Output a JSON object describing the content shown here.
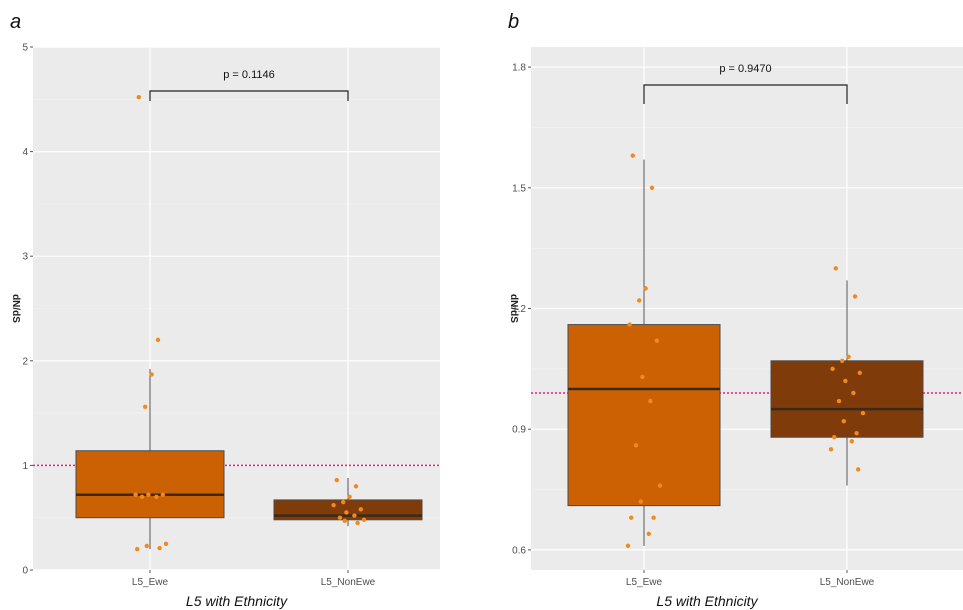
{
  "chart_data": [
    {
      "panel": "a",
      "type": "box",
      "xlabel": "L5 with  Ethnicity",
      "ylabel": "dN/dS",
      "ylim": [
        0,
        5
      ],
      "yticks": [
        0,
        1,
        2,
        3,
        4,
        5
      ],
      "categories": [
        "L5_Ewe",
        "L5_NonEwe"
      ],
      "reference_line": 1.0,
      "pvalue": "p = 0.1146",
      "grid": true,
      "colors": {
        "L5_Ewe": "#cc6103",
        "L5_NonEwe": "#7f3c0a",
        "reference_line": "#e8207a",
        "points": "#f08a1c",
        "panel_bg": "#ebebeb"
      },
      "boxes": [
        {
          "category": "L5_Ewe",
          "whisker_low": 0.2,
          "q1": 0.5,
          "median": 0.72,
          "q3": 1.14,
          "whisker_high": 1.92,
          "points": [
            4.52,
            2.2,
            1.87,
            1.56,
            0.72,
            0.72,
            0.72,
            0.7,
            0.7,
            0.25,
            0.23,
            0.21,
            0.2
          ]
        },
        {
          "category": "L5_NonEwe",
          "whisker_low": 0.42,
          "q1": 0.48,
          "median": 0.52,
          "q3": 0.67,
          "whisker_high": 0.88,
          "points": [
            0.86,
            0.8,
            0.7,
            0.65,
            0.62,
            0.58,
            0.55,
            0.52,
            0.5,
            0.48,
            0.47,
            0.45
          ]
        }
      ]
    },
    {
      "panel": "b",
      "type": "box",
      "xlabel": "L5 with  Ethnicity",
      "ylabel": "dN/dS",
      "ylim": [
        0.55,
        1.85
      ],
      "yticks": [
        0.6,
        0.9,
        1.2,
        1.5,
        1.8
      ],
      "categories": [
        "L5_Ewe",
        "L5_NonEwe"
      ],
      "reference_line": 0.99,
      "pvalue": "p = 0.9470",
      "grid": true,
      "colors": {
        "L5_Ewe": "#cc6103",
        "L5_NonEwe": "#7f3c0a",
        "reference_line": "#e8207a",
        "points": "#f08a1c",
        "panel_bg": "#ebebeb"
      },
      "boxes": [
        {
          "category": "L5_Ewe",
          "whisker_low": 0.61,
          "q1": 0.71,
          "median": 1.0,
          "q3": 1.16,
          "whisker_high": 1.57,
          "points": [
            1.58,
            1.5,
            1.25,
            1.22,
            1.16,
            1.12,
            1.03,
            0.97,
            0.86,
            0.76,
            0.72,
            0.68,
            0.68,
            0.64,
            0.61
          ]
        },
        {
          "category": "L5_NonEwe",
          "whisker_low": 0.76,
          "q1": 0.88,
          "median": 0.95,
          "q3": 1.07,
          "whisker_high": 1.27,
          "points": [
            1.3,
            1.23,
            1.08,
            1.07,
            1.05,
            1.04,
            1.02,
            0.99,
            0.97,
            0.94,
            0.92,
            0.89,
            0.88,
            0.87,
            0.85,
            0.8
          ]
        }
      ]
    }
  ]
}
